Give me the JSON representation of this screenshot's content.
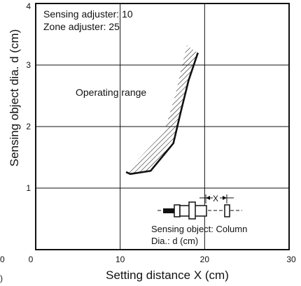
{
  "chart_data": {
    "type": "area",
    "title": "",
    "xlabel": "Setting distance X (cm)",
    "ylabel": "Sensing object dia. d (cm)",
    "xlim": [
      0,
      30
    ],
    "ylim": [
      0,
      4
    ],
    "x_ticks": [
      "0",
      "10",
      "20",
      "30"
    ],
    "y_ticks": [
      "1",
      "2",
      "3",
      "4"
    ],
    "grid": true,
    "series": [
      {
        "name": "Operating range",
        "region": [
          {
            "x": 10.7,
            "y": 1.26
          },
          {
            "x": 11.2,
            "y": 1.23
          },
          {
            "x": 13.6,
            "y": 1.28
          },
          {
            "x": 16.3,
            "y": 1.73
          },
          {
            "x": 17.2,
            "y": 2.25
          },
          {
            "x": 18.1,
            "y": 2.75
          },
          {
            "x": 19.2,
            "y": 3.2
          },
          {
            "x": 18.6,
            "y": 3.25
          },
          {
            "x": 17.9,
            "y": 3.32
          },
          {
            "x": 16.5,
            "y": 2.5
          },
          {
            "x": 15.2,
            "y": 1.9
          },
          {
            "x": 13.4,
            "y": 1.65
          },
          {
            "x": 12.0,
            "y": 1.45
          }
        ]
      }
    ],
    "annotations": {
      "settings_line1": "Sensing adjuster: 10",
      "settings_line2": "Zone adjuster: 25",
      "range_label": "Operating range",
      "diagram_x_label": "X",
      "object_line1": "Sensing object: Column",
      "object_line2": "Dia.: d (cm)"
    },
    "edge_marks": {
      "left_top": "0",
      "left_bottom": ")"
    },
    "colors": {
      "ink": "#111111",
      "grid": "#111111",
      "hatch": "#111111",
      "background": "#ffffff"
    }
  }
}
